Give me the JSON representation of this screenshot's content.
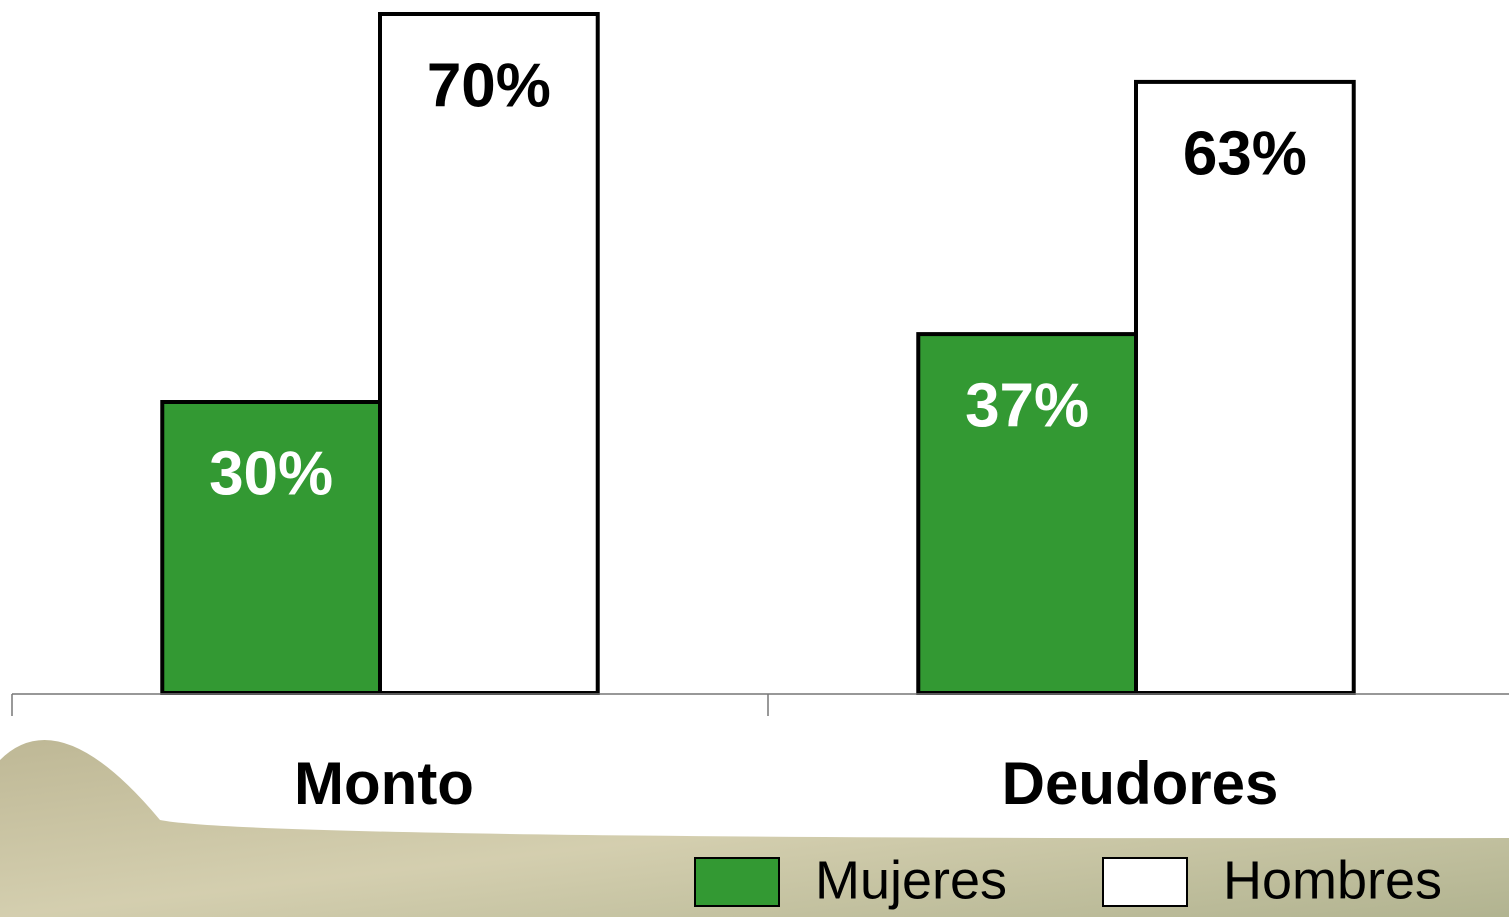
{
  "chart_data": {
    "type": "bar",
    "categories": [
      "Monto",
      "Deudores"
    ],
    "series": [
      {
        "name": "Mujeres",
        "color": "#339933",
        "values": [
          30,
          37
        ],
        "value_labels": [
          "30%",
          "37%"
        ],
        "label_color": "#ffffff"
      },
      {
        "name": "Hombres",
        "color": "#ffffff",
        "values": [
          70,
          63
        ],
        "value_labels": [
          "70%",
          "63%"
        ],
        "label_color": "#000000"
      }
    ],
    "ylim": [
      0,
      70
    ]
  }
}
